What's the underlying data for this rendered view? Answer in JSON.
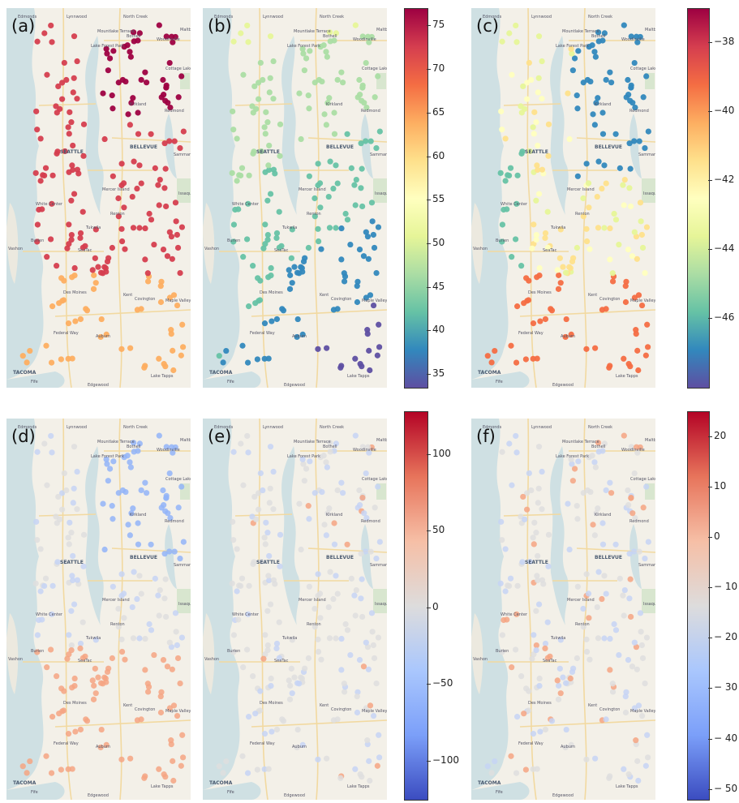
{
  "panels": [
    {
      "id": "a",
      "label": "(a)",
      "scheme": "abs"
    },
    {
      "id": "b",
      "label": "(b)",
      "scheme": "abs"
    },
    {
      "id": "c",
      "label": "(c)",
      "scheme": "c"
    },
    {
      "id": "d",
      "label": "(d)",
      "scheme": "div"
    },
    {
      "id": "e",
      "label": "(e)",
      "scheme": "div"
    },
    {
      "id": "f",
      "label": "(f)",
      "scheme": "f"
    }
  ],
  "map_labels": [
    "Edmonds",
    "Lynnwood",
    "North Creek",
    "Mountlake Terrace",
    "Bothell",
    "Woodinville",
    "Maltby",
    "Cottage Lake",
    "Lake Forest Park",
    "Kirkland",
    "Redmond",
    "SEATTLE",
    "BELLEVUE",
    "Sammamish",
    "Mercer Island",
    "Issaquah",
    "White Center",
    "Burien",
    "Renton",
    "Tukwila",
    "Vashon",
    "SeaTac",
    "Des Moines",
    "Kent",
    "Covington",
    "Maple Valley",
    "Federal Way",
    "Auburn",
    "TACOMA",
    "Fife",
    "Edgewood",
    "Lake Tapps"
  ],
  "colorbars": [
    {
      "id": "cb1",
      "ticks": [
        "75",
        "70",
        "65",
        "60",
        "55",
        "50",
        "45",
        "40",
        "35"
      ],
      "min": 33.5,
      "max": 77,
      "tick_values": [
        75,
        70,
        65,
        60,
        55,
        50,
        45,
        40,
        35
      ],
      "colors": [
        "#9e0142",
        "#d53e4f",
        "#f46d43",
        "#fdae61",
        "#fee08b",
        "#ffffbf",
        "#e6f598",
        "#abdda4",
        "#66c2a5",
        "#3288bd",
        "#5e4fa2"
      ]
    },
    {
      "id": "cb2",
      "ticks": [
        "−38",
        "−40",
        "−42",
        "−44",
        "−46"
      ],
      "min": -48,
      "max": -37,
      "tick_values": [
        -38,
        -40,
        -42,
        -44,
        -46
      ],
      "colors": [
        "#9e0142",
        "#d53e4f",
        "#f46d43",
        "#fdae61",
        "#fee08b",
        "#ffffbf",
        "#e6f598",
        "#abdda4",
        "#66c2a5",
        "#3288bd",
        "#5e4fa2"
      ]
    },
    {
      "id": "cb3",
      "ticks": [
        "100",
        "50",
        "0",
        "−50",
        "−100"
      ],
      "min": -125,
      "max": 128,
      "tick_values": [
        100,
        50,
        0,
        -50,
        -100
      ],
      "colors": [
        "#b40426",
        "#e7745b",
        "#f6bfa6",
        "#dddcdc",
        "#aac7fd",
        "#7b9ff9",
        "#3b4cc0"
      ]
    },
    {
      "id": "cb4",
      "ticks": [
        "20",
        "10",
        "0",
        "− 10",
        "− 20",
        "− 30",
        "− 40",
        "− 50"
      ],
      "min": -52,
      "max": 25,
      "tick_values": [
        20,
        10,
        0,
        -10,
        -20,
        -30,
        -40,
        -50
      ],
      "colors": [
        "#b40426",
        "#e7745b",
        "#f6bfa6",
        "#dddcdc",
        "#aac7fd",
        "#7b9ff9",
        "#3b4cc0"
      ]
    }
  ]
}
